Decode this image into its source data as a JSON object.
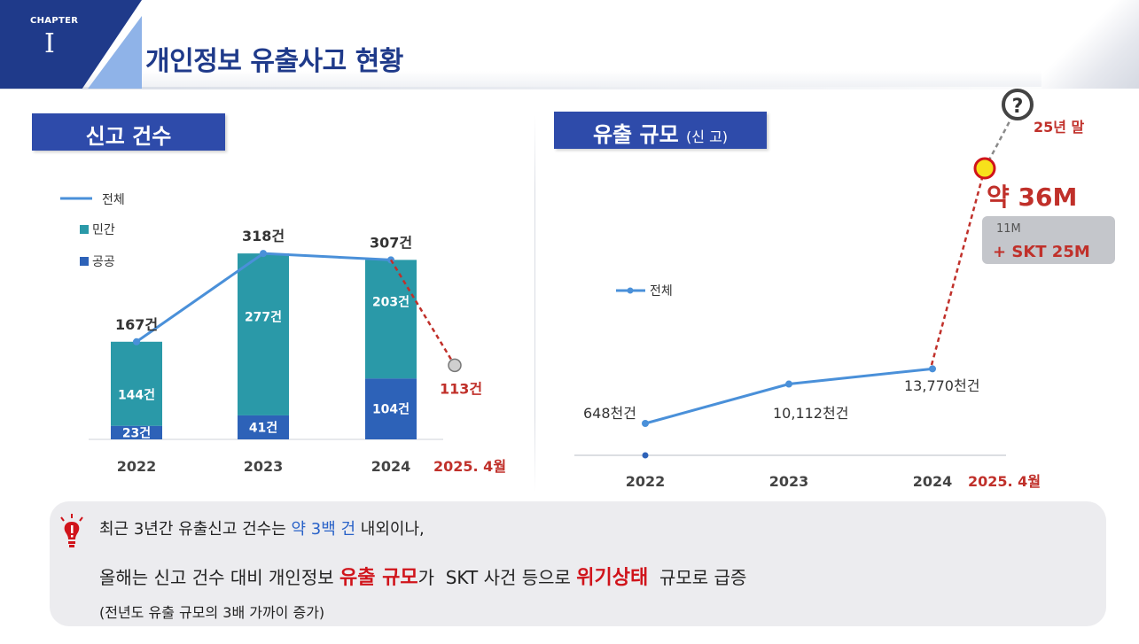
{
  "header": {
    "chapter_label": "CHAPTER",
    "chapter_number": "I",
    "title": "개인정보 유출사고 현황"
  },
  "left_panel": {
    "label": "신고 건수"
  },
  "right_panel": {
    "label": "유출 규모",
    "label_note": "(신 고)"
  },
  "chart_data": [
    {
      "type": "bar",
      "title": "신고 건수",
      "stacked": true,
      "categories": [
        "2022",
        "2023",
        "2024"
      ],
      "series": [
        {
          "name": "민간",
          "values": [
            144,
            277,
            203
          ],
          "labels": [
            "144건",
            "277건",
            "203건"
          ],
          "color": "#2a99a8"
        },
        {
          "name": "공공",
          "values": [
            23,
            41,
            104
          ],
          "labels": [
            "23건",
            "41건",
            "104건"
          ],
          "color": "#2d62b8"
        }
      ],
      "line_series": {
        "name": "전체",
        "values": [
          167,
          318,
          307
        ],
        "labels": [
          "167건",
          "318건",
          "307건"
        ],
        "color": "#4a90d9"
      },
      "projection": {
        "category": "2025. 4월",
        "value": 113,
        "label": "113건"
      },
      "legend": [
        "전체",
        "민간",
        "공공"
      ],
      "ylim": [
        0,
        340
      ]
    },
    {
      "type": "line",
      "title": "유출 규모 (신 고)",
      "categories": [
        "2022",
        "2023",
        "2024"
      ],
      "series": [
        {
          "name": "전체",
          "values_thousand": [
            648,
            10112,
            13770
          ],
          "labels": [
            "648천건",
            "10,112천건",
            "13,770천건"
          ],
          "color": "#4a90d9"
        }
      ],
      "projection": {
        "category": "2025. 4월",
        "label": "약 36M",
        "note_line1": "11M",
        "note_line2": "+ SKT 25M",
        "end_label": "25년 말",
        "end_symbol": "?"
      },
      "legend": [
        "전체"
      ]
    }
  ],
  "callout": {
    "line1_a": "최근 3년간 유출신고 건수는 ",
    "line1_b": "약 3백 건",
    "line1_c": " 내외이나,",
    "line2_a": "올해는 신고 건수 대비 개인정보 ",
    "line2_b": "유출 규모",
    "line2_c": "가  SKT 사건 등으로 ",
    "line2_d": "위기상태",
    "line2_e": "  규모로 급증",
    "line3": "(전년도 유출 규모의 3배 가까이 증가)"
  },
  "colors": {
    "navy": "#1f3a8a",
    "section_blue": "#2e4baa",
    "teal": "#2a99a8",
    "bar_blue": "#2d62b8",
    "line_blue": "#4a90d9",
    "red": "#c0302a"
  }
}
